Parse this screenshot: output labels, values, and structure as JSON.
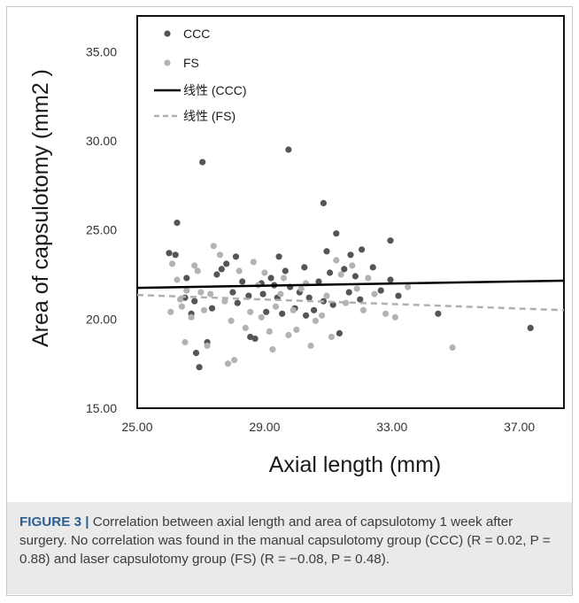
{
  "figure": {
    "caption_label": "FIGURE 3",
    "caption_separator": "|",
    "caption_text": "Correlation between axial length and area of capsulotomy 1 week after surgery. No correlation was found in the manual capsulotomy group (CCC) (R = 0.02, P = 0.88) and laser capsulotomy group (FS) (R = −0.08, P = 0.48)."
  },
  "chart_data": {
    "type": "scatter",
    "title": "",
    "xlabel": "Axial length (mm)",
    "ylabel": "Area of capsulotomy (mm2 )",
    "xlim": [
      25,
      38.4
    ],
    "ylim": [
      15,
      37
    ],
    "x_ticks": [
      "25.00",
      "29.00",
      "33.00",
      "37.00"
    ],
    "y_ticks": [
      "15.00",
      "20.00",
      "25.00",
      "30.00",
      "35.00"
    ],
    "grid": false,
    "legend_position": "top-left",
    "colors": {
      "CCC": "#555555",
      "FS": "#b3b3b3",
      "fit_CCC": "#000000",
      "fit_FS": "#b0b0b0"
    },
    "series": [
      {
        "name": "CCC",
        "kind": "points",
        "points": [
          [
            27.05,
            28.8
          ],
          [
            29.75,
            29.5
          ],
          [
            30.85,
            26.5
          ],
          [
            31.25,
            24.8
          ],
          [
            26.25,
            25.4
          ],
          [
            26.0,
            23.7
          ],
          [
            26.2,
            23.6
          ],
          [
            26.5,
            21.2
          ],
          [
            26.55,
            22.3
          ],
          [
            26.8,
            21.0
          ],
          [
            26.85,
            18.1
          ],
          [
            26.95,
            17.3
          ],
          [
            27.2,
            18.7
          ],
          [
            27.5,
            22.5
          ],
          [
            27.65,
            22.8
          ],
          [
            27.8,
            23.1
          ],
          [
            28.0,
            21.5
          ],
          [
            28.15,
            20.9
          ],
          [
            28.3,
            22.1
          ],
          [
            28.5,
            21.3
          ],
          [
            28.55,
            19.0
          ],
          [
            28.7,
            18.9
          ],
          [
            28.9,
            22.0
          ],
          [
            28.95,
            21.4
          ],
          [
            29.05,
            20.4
          ],
          [
            29.2,
            22.3
          ],
          [
            29.3,
            21.9
          ],
          [
            29.4,
            21.2
          ],
          [
            29.45,
            23.5
          ],
          [
            29.55,
            20.3
          ],
          [
            29.65,
            22.7
          ],
          [
            29.8,
            21.8
          ],
          [
            29.95,
            20.6
          ],
          [
            30.1,
            21.5
          ],
          [
            30.25,
            22.9
          ],
          [
            30.4,
            21.2
          ],
          [
            30.55,
            20.5
          ],
          [
            30.7,
            22.1
          ],
          [
            30.85,
            21.0
          ],
          [
            30.95,
            23.8
          ],
          [
            31.05,
            22.6
          ],
          [
            31.15,
            20.8
          ],
          [
            31.35,
            19.2
          ],
          [
            31.5,
            22.8
          ],
          [
            31.65,
            21.5
          ],
          [
            31.7,
            23.6
          ],
          [
            31.85,
            22.4
          ],
          [
            32.0,
            21.1
          ],
          [
            32.05,
            23.9
          ],
          [
            32.4,
            22.9
          ],
          [
            32.65,
            21.6
          ],
          [
            32.95,
            24.4
          ],
          [
            32.95,
            22.2
          ],
          [
            33.2,
            21.3
          ],
          [
            34.45,
            20.3
          ],
          [
            37.35,
            19.5
          ],
          [
            27.35,
            20.6
          ],
          [
            28.1,
            23.5
          ],
          [
            26.7,
            20.3
          ],
          [
            30.3,
            20.2
          ]
        ]
      },
      {
        "name": "FS",
        "kind": "points",
        "points": [
          [
            26.1,
            23.1
          ],
          [
            26.25,
            22.2
          ],
          [
            26.35,
            21.1
          ],
          [
            26.4,
            20.7
          ],
          [
            26.5,
            18.7
          ],
          [
            26.55,
            21.6
          ],
          [
            26.7,
            20.1
          ],
          [
            26.9,
            22.7
          ],
          [
            27.0,
            21.5
          ],
          [
            27.1,
            20.5
          ],
          [
            27.2,
            18.5
          ],
          [
            27.3,
            21.4
          ],
          [
            27.4,
            24.1
          ],
          [
            27.6,
            23.6
          ],
          [
            27.75,
            21.0
          ],
          [
            27.85,
            17.5
          ],
          [
            27.95,
            19.9
          ],
          [
            28.05,
            17.7
          ],
          [
            28.2,
            22.7
          ],
          [
            28.4,
            19.5
          ],
          [
            28.55,
            20.4
          ],
          [
            28.65,
            23.2
          ],
          [
            28.8,
            21.9
          ],
          [
            28.9,
            20.1
          ],
          [
            29.0,
            22.6
          ],
          [
            29.15,
            19.3
          ],
          [
            29.25,
            18.3
          ],
          [
            29.35,
            20.7
          ],
          [
            29.5,
            21.4
          ],
          [
            29.6,
            22.3
          ],
          [
            29.75,
            19.1
          ],
          [
            29.9,
            20.5
          ],
          [
            30.0,
            19.4
          ],
          [
            30.15,
            21.7
          ],
          [
            30.3,
            22.0
          ],
          [
            30.45,
            18.5
          ],
          [
            30.6,
            19.9
          ],
          [
            30.8,
            20.2
          ],
          [
            30.95,
            21.3
          ],
          [
            31.1,
            19.0
          ],
          [
            31.25,
            23.3
          ],
          [
            31.4,
            22.5
          ],
          [
            31.55,
            20.9
          ],
          [
            31.75,
            23.0
          ],
          [
            31.9,
            21.7
          ],
          [
            32.1,
            20.5
          ],
          [
            32.25,
            22.3
          ],
          [
            32.45,
            21.4
          ],
          [
            32.8,
            20.3
          ],
          [
            33.1,
            20.1
          ],
          [
            33.5,
            21.8
          ],
          [
            34.9,
            18.4
          ],
          [
            26.05,
            20.4
          ],
          [
            26.8,
            23.0
          ]
        ]
      },
      {
        "name": "线性 (CCC)",
        "kind": "fit",
        "from": [
          25.0,
          21.75
        ],
        "to": [
          38.4,
          22.15
        ]
      },
      {
        "name": "线性 (FS)",
        "kind": "fit",
        "from": [
          25.0,
          21.35
        ],
        "to": [
          38.4,
          20.5
        ]
      }
    ]
  }
}
